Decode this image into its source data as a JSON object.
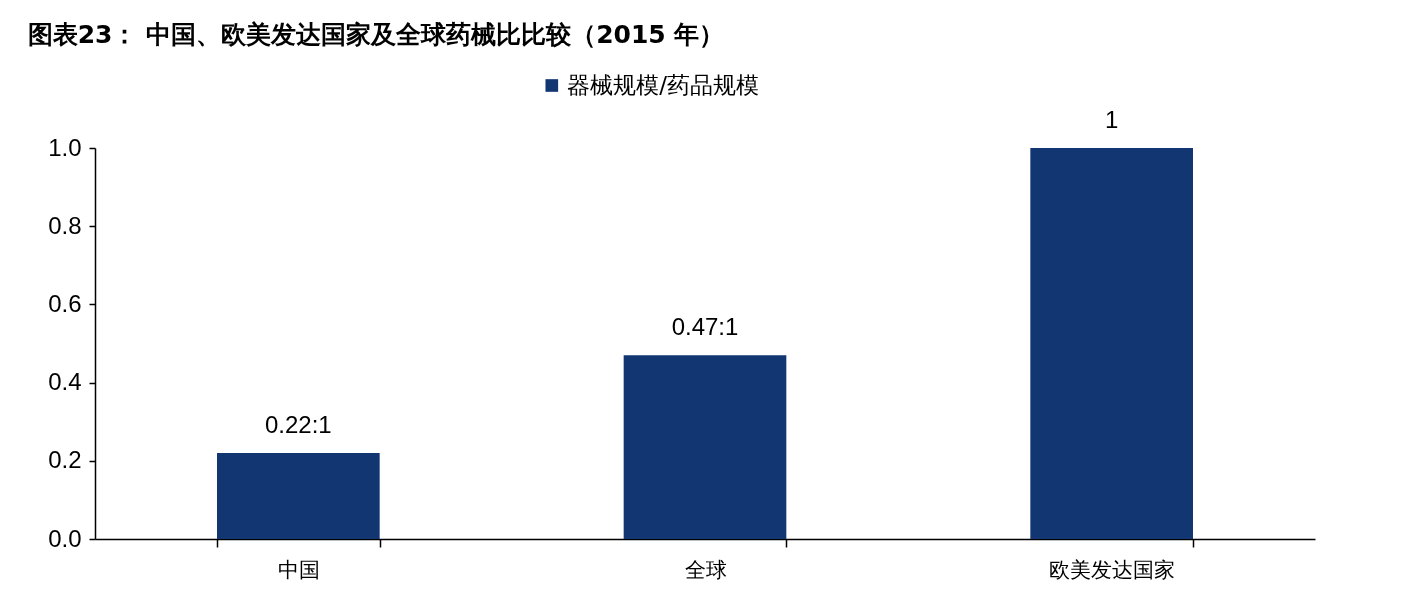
{
  "chart_data": {
    "type": "bar",
    "title": "图表23：  中国、欧美发达国家及全球药械比比较（2015 年）",
    "categories": [
      "中国",
      "全球",
      "欧美发达国家"
    ],
    "series": [
      {
        "name": "器械规模/药品规模",
        "color": "#123672",
        "values": [
          0.22,
          0.47,
          1.0
        ],
        "value_labels": [
          "0.22:1",
          "0.47:1",
          "1"
        ]
      }
    ],
    "ylim": [
      0,
      1.0
    ],
    "yticks": [
      {
        "value": 0,
        "label": "0.0"
      },
      0.2,
      0.4,
      0.6,
      0.8,
      {
        "value": 1.0,
        "label": "1.0"
      }
    ],
    "grid": false,
    "legend": "top"
  }
}
